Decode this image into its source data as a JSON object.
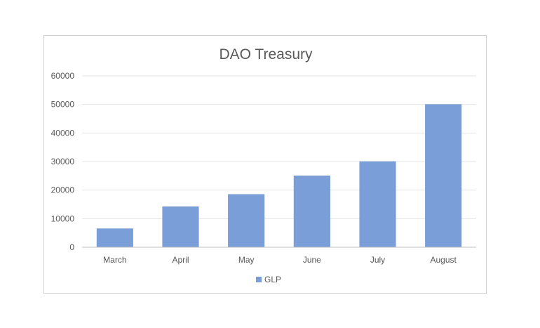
{
  "chart_data": {
    "type": "bar",
    "title": "DAO Treasury",
    "categories": [
      "March",
      "April",
      "May",
      "June",
      "July",
      "August"
    ],
    "series": [
      {
        "name": "GLP",
        "values": [
          6500,
          14200,
          18500,
          25000,
          30000,
          50000
        ]
      }
    ],
    "ylim": [
      0,
      60000
    ],
    "yticks": [
      0,
      10000,
      20000,
      30000,
      40000,
      50000,
      60000
    ],
    "grid": true,
    "legend": "bottom",
    "colors": {
      "bar": "#7a9fd8",
      "bar_edge": "#6b8fc8",
      "grid": "#e3e3e3",
      "axis": "#bfbfbf",
      "text": "#595959"
    }
  }
}
